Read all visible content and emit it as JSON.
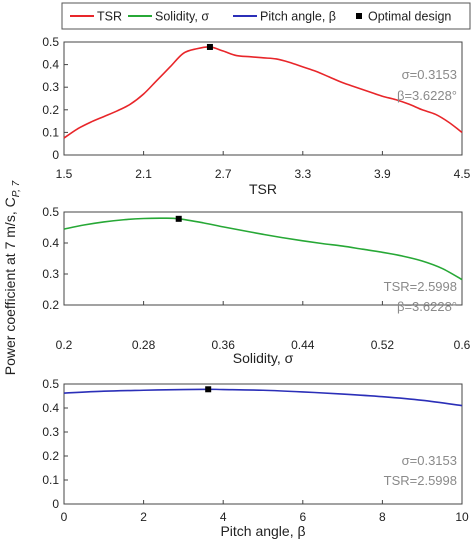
{
  "legend": {
    "items": [
      {
        "label": "TSR",
        "color": "#e8262a",
        "kind": "line"
      },
      {
        "label": "Solidity, σ",
        "color": "#27a836",
        "kind": "line"
      },
      {
        "label": "Pitch angle, β",
        "color": "#2b2fb8",
        "kind": "line"
      },
      {
        "label": "Optimal design",
        "color": "#000000",
        "kind": "marker"
      }
    ]
  },
  "ylabel_main": "Power coefficient at 7 m/s, C",
  "ylabel_sub": "P, 7",
  "chart_data": [
    {
      "type": "line",
      "xlabel": "TSR",
      "xlim": [
        1.5,
        4.5
      ],
      "ylim": [
        0,
        0.5
      ],
      "xticks": [
        "1.5",
        "2.1",
        "2.7",
        "3.3",
        "3.9",
        "4.5"
      ],
      "yticks": [
        "0",
        "0.1",
        "0.2",
        "0.3",
        "0.4",
        "0.5"
      ],
      "grid": false,
      "annotation": [
        "σ=0.3153",
        "β=3.6228°"
      ],
      "series": [
        {
          "name": "TSR",
          "color": "#e8262a",
          "x": [
            1.5,
            1.6,
            1.7,
            1.8,
            1.9,
            2.0,
            2.1,
            2.2,
            2.3,
            2.4,
            2.5,
            2.6,
            2.7,
            2.8,
            2.9,
            3.0,
            3.1,
            3.2,
            3.3,
            3.4,
            3.5,
            3.6,
            3.7,
            3.8,
            3.9,
            4.0,
            4.1,
            4.2,
            4.3,
            4.4,
            4.5
          ],
          "y": [
            0.075,
            0.115,
            0.145,
            0.17,
            0.195,
            0.225,
            0.27,
            0.33,
            0.39,
            0.45,
            0.47,
            0.478,
            0.46,
            0.44,
            0.435,
            0.43,
            0.425,
            0.41,
            0.39,
            0.37,
            0.345,
            0.32,
            0.3,
            0.28,
            0.26,
            0.245,
            0.225,
            0.2,
            0.18,
            0.145,
            0.1
          ]
        }
      ],
      "optimal": {
        "x": 2.6,
        "y": 0.478
      }
    },
    {
      "type": "line",
      "xlabel": "Solidity, σ",
      "xlim": [
        0.2,
        0.6
      ],
      "ylim": [
        0.2,
        0.5
      ],
      "xticks": [
        "0.2",
        "0.28",
        "0.36",
        "0.44",
        "0.52",
        "0.6"
      ],
      "yticks": [
        "0.2",
        "0.3",
        "0.4",
        "0.5"
      ],
      "grid": false,
      "annotation": [
        "TSR=2.5998",
        "β=3.6228°"
      ],
      "series": [
        {
          "name": "Solidity, σ",
          "color": "#27a836",
          "x": [
            0.2,
            0.22,
            0.24,
            0.26,
            0.28,
            0.3,
            0.3153,
            0.34,
            0.36,
            0.38,
            0.4,
            0.42,
            0.44,
            0.46,
            0.48,
            0.5,
            0.52,
            0.54,
            0.56,
            0.58,
            0.6
          ],
          "y": [
            0.445,
            0.458,
            0.468,
            0.475,
            0.479,
            0.48,
            0.478,
            0.465,
            0.452,
            0.44,
            0.428,
            0.417,
            0.407,
            0.398,
            0.39,
            0.38,
            0.37,
            0.358,
            0.342,
            0.318,
            0.282
          ]
        }
      ],
      "optimal": {
        "x": 0.3153,
        "y": 0.478
      }
    },
    {
      "type": "line",
      "xlabel": "Pitch angle, β",
      "xlim": [
        0,
        10
      ],
      "ylim": [
        0,
        0.5
      ],
      "xticks": [
        "0",
        "2",
        "4",
        "6",
        "8",
        "10"
      ],
      "yticks": [
        "0",
        "0.1",
        "0.2",
        "0.3",
        "0.4",
        "0.5"
      ],
      "grid": false,
      "annotation": [
        "σ=0.3153",
        "TSR=2.5998"
      ],
      "series": [
        {
          "name": "Pitch angle, β",
          "color": "#2b2fb8",
          "x": [
            0,
            1,
            2,
            3,
            3.6228,
            4,
            5,
            6,
            7,
            8,
            9,
            10
          ],
          "y": [
            0.462,
            0.47,
            0.474,
            0.477,
            0.478,
            0.477,
            0.474,
            0.467,
            0.458,
            0.447,
            0.432,
            0.41
          ]
        }
      ],
      "optimal": {
        "x": 3.6228,
        "y": 0.478
      }
    }
  ]
}
